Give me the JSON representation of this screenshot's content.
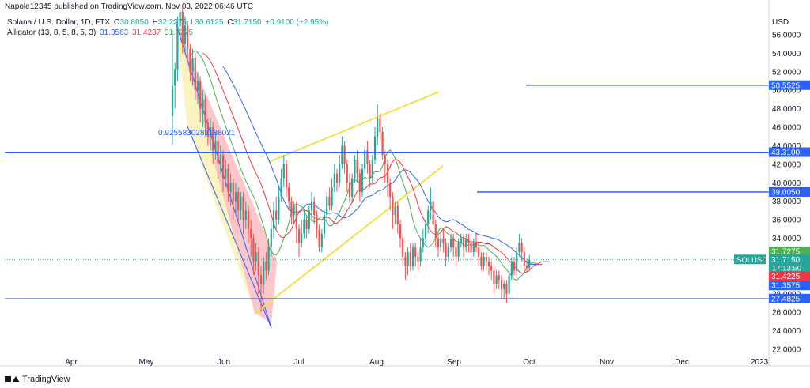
{
  "header": {
    "published": "Napole12345 published on TradingView.com, Nov 03, 2022 06:46 UTC"
  },
  "legend": {
    "symbol": "Solana / U.S. Dollar, 1D, FTX",
    "o_label": "O",
    "o": "30.8050",
    "h_label": "H",
    "h": "32.2375",
    "l_label": "L",
    "l": "30.6125",
    "c_label": "C",
    "c": "31.7150",
    "change": "+0.9100 (+2.95%)",
    "alligator_label": "Alligator (13, 8, 5, 8, 5, 3)",
    "jaw": "31.3563",
    "teeth": "31.4237",
    "lips": "31.7275"
  },
  "fib_label": "0.9255830282188021",
  "footer": {
    "brand": "TradingView"
  },
  "colors": {
    "up": "#26a69a",
    "down": "#ef5350",
    "jaw": "#2962ff",
    "teeth": "#f23645",
    "lips": "#4caf50",
    "wedge": "#f5e04a",
    "hline": "#2962ff"
  },
  "chart_data": {
    "type": "candlestick",
    "currency_label": "USD",
    "y_ticks": [
      "56.0000",
      "54.0000",
      "52.0000",
      "50.0000",
      "48.0000",
      "46.0000",
      "44.0000",
      "42.0000",
      "40.0000",
      "38.0000",
      "36.0000",
      "34.0000",
      "32.0000",
      "30.0000",
      "28.0000",
      "26.0000",
      "24.0000",
      "22.0000"
    ],
    "ylim": [
      21,
      57.5
    ],
    "x_ticks": [
      "Apr",
      "May",
      "Jun",
      "Jul",
      "Aug",
      "Sep",
      "Oct",
      "Nov",
      "Dec",
      "2023"
    ],
    "price_tags": [
      {
        "label": "50.5525",
        "value": 50.5525,
        "color": "#2962ff"
      },
      {
        "label": "43.3100",
        "value": 43.31,
        "color": "#2962ff"
      },
      {
        "label": "39.0050",
        "value": 39.005,
        "color": "#2962ff"
      },
      {
        "label": "31.7275",
        "value": 32.6,
        "color": "#4caf50"
      },
      {
        "label": "31.7150",
        "value": 31.715,
        "color": "#26a69a",
        "symbol": "SOLUSD",
        "countdown": "17:13:50"
      },
      {
        "label": "31.4225",
        "value": 29.9,
        "color": "#f23645"
      },
      {
        "label": "31.3575",
        "value": 28.9,
        "color": "#2962ff"
      },
      {
        "label": "27.4825",
        "value": 27.4825,
        "color": "#2962ff"
      }
    ],
    "horizontal_lines": [
      {
        "value": 50.5525,
        "start": "Sep 20"
      },
      {
        "value": 43.31,
        "start": "Mar 15"
      },
      {
        "value": 39.005,
        "start": "Sep 03"
      },
      {
        "value": 27.4825,
        "start": "Mar 15"
      }
    ],
    "candles": [
      [
        47.2,
        50.5,
        44.1,
        56.5
      ],
      [
        50.5,
        52.3,
        48.0,
        53.0
      ],
      [
        52.3,
        56.9,
        51.0,
        58.0
      ],
      [
        56.9,
        58.5,
        53.0,
        59.5
      ],
      [
        58.5,
        55.0,
        54.0,
        59.0
      ],
      [
        55.0,
        57.0,
        54.0,
        58.0
      ],
      [
        57.0,
        54.5,
        53.0,
        57.5
      ],
      [
        54.5,
        52.0,
        51.0,
        55.0
      ],
      [
        52.0,
        53.5,
        50.5,
        54.5
      ],
      [
        53.5,
        50.0,
        49.0,
        54.0
      ],
      [
        50.0,
        51.0,
        48.5,
        52.0
      ],
      [
        51.0,
        48.0,
        46.5,
        51.5
      ],
      [
        48.0,
        49.0,
        46.0,
        50.0
      ],
      [
        49.0,
        46.5,
        45.0,
        49.5
      ],
      [
        46.5,
        45.0,
        44.0,
        47.0
      ],
      [
        45.0,
        46.0,
        43.5,
        47.0
      ],
      [
        46.0,
        43.5,
        42.0,
        46.5
      ],
      [
        43.5,
        44.5,
        42.5,
        45.5
      ],
      [
        44.5,
        42.0,
        40.5,
        45.0
      ],
      [
        42.0,
        43.0,
        41.0,
        44.0
      ],
      [
        43.0,
        40.5,
        39.0,
        43.5
      ],
      [
        40.5,
        41.5,
        39.5,
        42.5
      ],
      [
        41.5,
        39.0,
        38.0,
        42.0
      ],
      [
        39.0,
        40.0,
        37.5,
        41.0
      ],
      [
        40.0,
        38.0,
        36.0,
        40.5
      ],
      [
        38.0,
        39.0,
        36.5,
        40.0
      ],
      [
        39.0,
        37.0,
        35.5,
        39.5
      ],
      [
        37.0,
        38.5,
        36.0,
        39.0
      ],
      [
        38.5,
        36.0,
        34.5,
        39.0
      ],
      [
        36.0,
        37.0,
        35.0,
        38.0
      ],
      [
        37.0,
        35.0,
        33.5,
        37.5
      ],
      [
        35.0,
        34.0,
        32.0,
        36.0
      ],
      [
        34.0,
        31.5,
        30.0,
        34.5
      ],
      [
        31.5,
        32.5,
        30.5,
        33.5
      ],
      [
        32.5,
        30.0,
        28.0,
        33.0
      ],
      [
        30.0,
        29.0,
        26.0,
        31.0
      ],
      [
        29.0,
        31.5,
        28.0,
        32.0
      ],
      [
        31.5,
        30.5,
        29.5,
        32.5
      ],
      [
        30.5,
        33.0,
        30.0,
        34.0
      ],
      [
        33.0,
        35.0,
        32.0,
        36.0
      ],
      [
        35.0,
        37.0,
        34.0,
        38.0
      ],
      [
        37.0,
        36.0,
        35.0,
        38.5
      ],
      [
        36.0,
        38.5,
        35.5,
        39.5
      ],
      [
        38.5,
        40.5,
        38.0,
        41.5
      ],
      [
        40.5,
        42.0,
        39.5,
        43.0
      ],
      [
        42.0,
        39.5,
        38.5,
        42.5
      ],
      [
        39.5,
        38.0,
        37.0,
        40.0
      ],
      [
        38.0,
        36.5,
        35.5,
        38.5
      ],
      [
        36.5,
        37.5,
        35.5,
        38.0
      ],
      [
        37.5,
        35.0,
        33.5,
        38.0
      ],
      [
        35.0,
        33.5,
        32.0,
        35.5
      ],
      [
        33.5,
        34.5,
        33.0,
        36.0
      ],
      [
        34.5,
        36.0,
        34.0,
        37.0
      ],
      [
        36.0,
        35.0,
        34.0,
        36.5
      ],
      [
        35.0,
        37.0,
        34.5,
        37.5
      ],
      [
        37.0,
        38.0,
        36.0,
        39.0
      ],
      [
        38.0,
        36.5,
        35.5,
        38.5
      ],
      [
        36.5,
        35.0,
        34.0,
        37.0
      ],
      [
        35.0,
        33.0,
        32.5,
        35.5
      ],
      [
        33.0,
        34.5,
        32.5,
        35.0
      ],
      [
        34.5,
        36.5,
        34.0,
        37.0
      ],
      [
        36.5,
        38.5,
        36.0,
        39.0
      ],
      [
        38.5,
        37.5,
        37.0,
        39.5
      ],
      [
        37.5,
        39.5,
        37.0,
        40.5
      ],
      [
        39.5,
        41.0,
        39.0,
        42.0
      ],
      [
        41.0,
        40.0,
        39.0,
        41.5
      ],
      [
        40.0,
        42.0,
        39.5,
        43.0
      ],
      [
        42.0,
        44.0,
        41.5,
        45.0
      ],
      [
        44.0,
        42.0,
        41.0,
        44.5
      ],
      [
        42.0,
        40.0,
        39.0,
        42.5
      ],
      [
        40.0,
        38.5,
        38.0,
        41.0
      ],
      [
        38.5,
        40.5,
        38.0,
        41.0
      ],
      [
        40.5,
        42.5,
        40.0,
        43.0
      ],
      [
        42.5,
        41.0,
        40.0,
        43.5
      ],
      [
        41.0,
        39.0,
        38.0,
        41.5
      ],
      [
        39.0,
        41.5,
        38.5,
        42.0
      ],
      [
        41.5,
        43.5,
        41.0,
        44.0
      ],
      [
        43.5,
        42.0,
        41.0,
        44.5
      ],
      [
        42.0,
        40.5,
        39.5,
        42.5
      ],
      [
        40.5,
        42.5,
        40.0,
        43.0
      ],
      [
        42.5,
        45.0,
        42.0,
        46.0
      ],
      [
        45.0,
        47.0,
        44.0,
        48.5
      ],
      [
        47.0,
        45.5,
        44.5,
        47.5
      ],
      [
        45.5,
        43.0,
        42.5,
        46.0
      ],
      [
        43.0,
        42.0,
        40.0,
        43.5
      ],
      [
        42.0,
        40.0,
        38.5,
        42.5
      ],
      [
        40.0,
        38.5,
        37.0,
        40.5
      ],
      [
        38.5,
        36.5,
        35.0,
        39.0
      ],
      [
        36.5,
        37.5,
        35.5,
        38.0
      ],
      [
        37.5,
        35.5,
        34.5,
        38.0
      ],
      [
        35.5,
        34.0,
        33.0,
        36.0
      ],
      [
        34.0,
        32.0,
        31.0,
        34.5
      ],
      [
        32.0,
        31.0,
        29.5,
        32.5
      ],
      [
        31.0,
        32.5,
        30.0,
        33.0
      ],
      [
        32.5,
        31.0,
        30.5,
        33.5
      ],
      [
        31.0,
        33.0,
        30.5,
        33.5
      ],
      [
        33.0,
        32.0,
        31.0,
        33.5
      ],
      [
        32.0,
        31.5,
        30.5,
        32.5
      ],
      [
        31.5,
        33.0,
        31.0,
        34.0
      ],
      [
        33.0,
        34.0,
        32.5,
        35.0
      ],
      [
        34.0,
        35.5,
        33.5,
        36.0
      ],
      [
        35.5,
        37.0,
        34.5,
        37.5
      ],
      [
        37.0,
        38.0,
        36.0,
        39.5
      ],
      [
        38.0,
        35.5,
        35.0,
        38.5
      ],
      [
        35.5,
        34.0,
        33.0,
        36.0
      ],
      [
        34.0,
        33.0,
        32.0,
        34.5
      ],
      [
        33.0,
        34.0,
        32.5,
        34.5
      ],
      [
        34.0,
        33.5,
        32.5,
        35.0
      ],
      [
        33.5,
        32.0,
        31.0,
        34.0
      ],
      [
        32.0,
        33.0,
        31.5,
        33.5
      ],
      [
        33.0,
        34.0,
        32.5,
        34.5
      ],
      [
        34.0,
        33.0,
        32.0,
        34.5
      ],
      [
        33.0,
        32.0,
        31.0,
        33.5
      ],
      [
        32.0,
        33.5,
        31.5,
        34.0
      ],
      [
        33.5,
        34.0,
        33.0,
        34.5
      ],
      [
        34.0,
        33.0,
        32.0,
        34.5
      ],
      [
        33.0,
        34.0,
        32.5,
        34.5
      ],
      [
        34.0,
        33.5,
        32.5,
        34.5
      ],
      [
        33.5,
        32.5,
        31.5,
        34.0
      ],
      [
        32.5,
        33.5,
        32.0,
        34.0
      ],
      [
        33.5,
        33.0,
        32.5,
        34.5
      ],
      [
        33.0,
        32.0,
        31.0,
        33.5
      ],
      [
        32.0,
        31.0,
        30.5,
        32.5
      ],
      [
        31.0,
        32.0,
        30.5,
        32.5
      ],
      [
        32.0,
        31.5,
        30.5,
        32.5
      ],
      [
        31.5,
        31.0,
        30.0,
        32.0
      ],
      [
        31.0,
        30.5,
        29.5,
        31.5
      ],
      [
        30.5,
        29.0,
        28.0,
        31.0
      ],
      [
        29.0,
        30.0,
        28.5,
        30.5
      ],
      [
        30.0,
        29.5,
        28.5,
        30.5
      ],
      [
        29.5,
        28.5,
        27.5,
        30.0
      ],
      [
        28.5,
        29.0,
        27.5,
        29.5
      ],
      [
        29.0,
        28.0,
        27.0,
        29.5
      ],
      [
        28.0,
        30.0,
        27.5,
        30.5
      ],
      [
        30.0,
        31.5,
        29.5,
        32.0
      ],
      [
        31.5,
        30.5,
        30.0,
        32.0
      ],
      [
        30.5,
        32.5,
        30.0,
        33.0
      ],
      [
        32.5,
        33.5,
        32.0,
        34.5
      ],
      [
        33.5,
        32.5,
        31.5,
        34.0
      ],
      [
        32.5,
        31.0,
        30.5,
        33.0
      ],
      [
        31.0,
        30.8,
        30.3,
        31.8
      ],
      [
        30.8,
        31.7,
        30.6,
        32.2
      ]
    ],
    "alligator": {
      "jaw_shift": 8,
      "teeth_shift": 5,
      "lips_shift": 3
    },
    "fib_value": 0.9255830282188021
  }
}
